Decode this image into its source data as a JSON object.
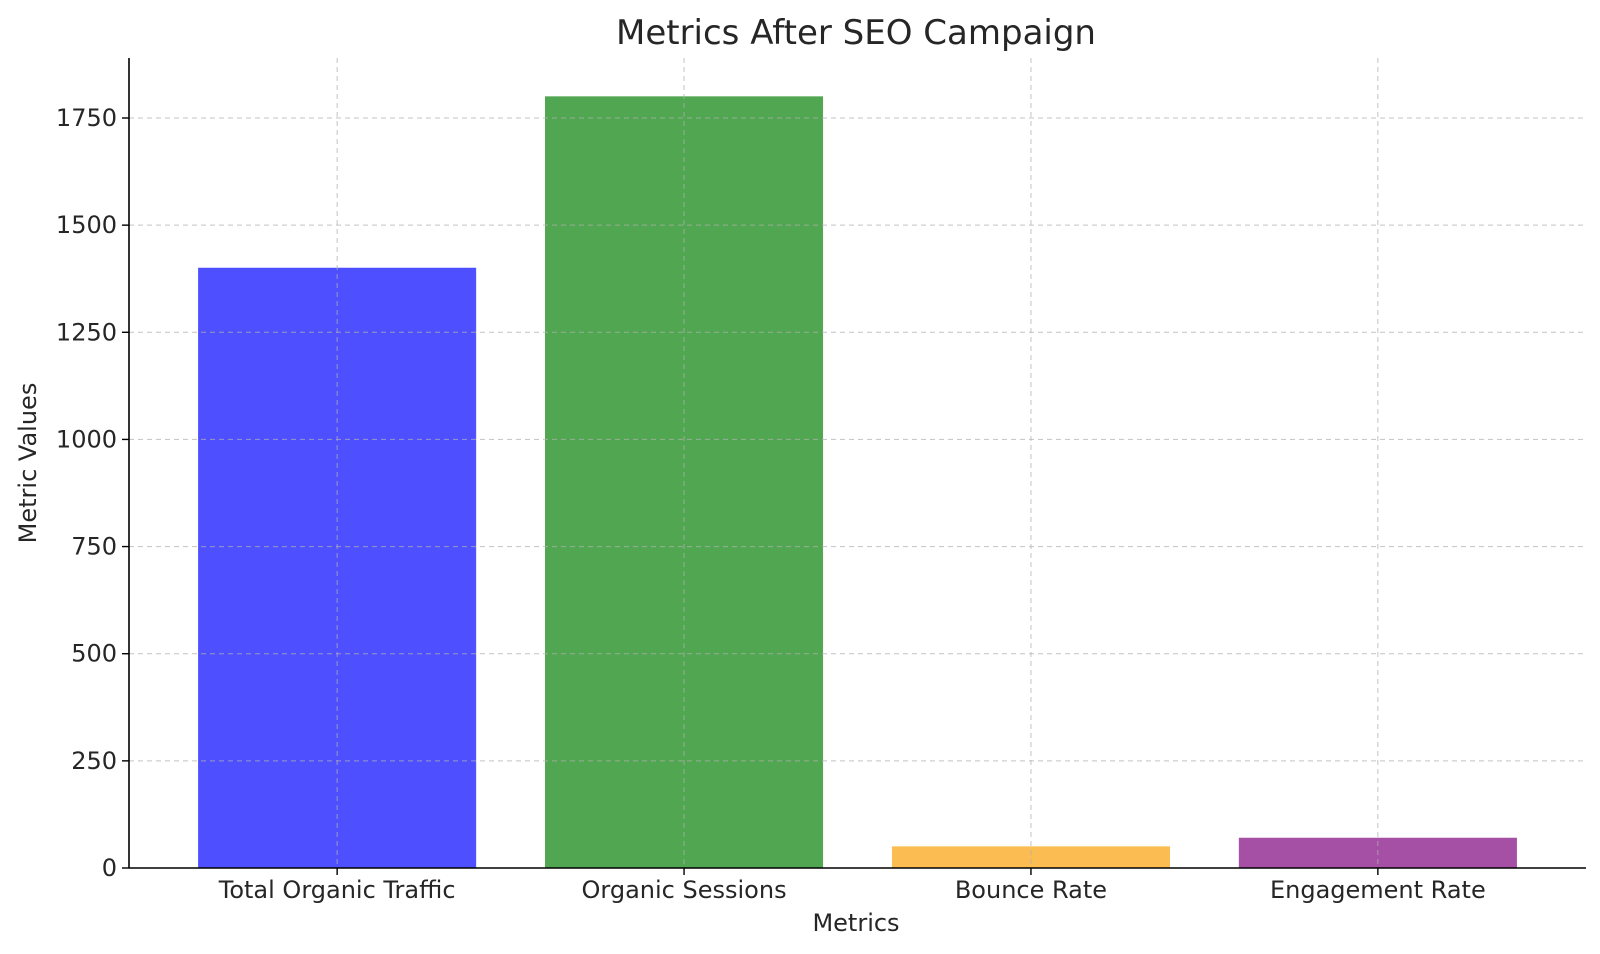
{
  "chart_data": {
    "type": "bar",
    "title": "Metrics After SEO Campaign",
    "xlabel": "Metrics",
    "ylabel": "Metric Values",
    "categories": [
      "Total Organic Traffic",
      "Organic Sessions",
      "Bounce Rate",
      "Engagement Rate"
    ],
    "values": [
      1400,
      1800,
      50,
      70
    ],
    "colors": [
      "#4a4dff",
      "#4ea54e",
      "#fbbc4e",
      "#a34ba3"
    ],
    "ylim": [
      0,
      1890
    ],
    "yticks": [
      0,
      250,
      500,
      750,
      1000,
      1250,
      1500,
      1750
    ],
    "grid": true,
    "legend": "none"
  }
}
